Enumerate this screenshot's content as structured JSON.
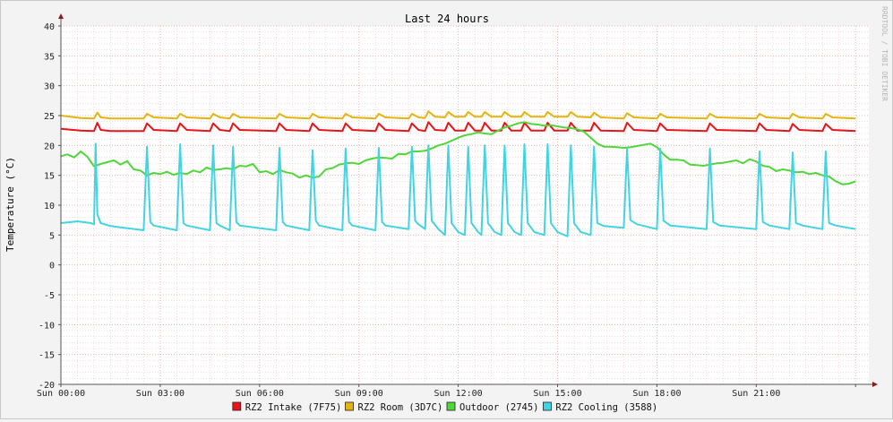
{
  "chart_data": {
    "type": "line",
    "title": "Last 24 hours",
    "ylabel": "Temperature (°C)",
    "watermark": "RRDTOOL / TOBI OETIKER",
    "ylim": [
      -20,
      40
    ],
    "xlim_hours": [
      0,
      24.4
    ],
    "y_ticks": [
      "40",
      "35",
      "30",
      "25",
      "20",
      "15",
      "10",
      "5",
      "0",
      "-5",
      "-10",
      "-15",
      "-20"
    ],
    "x_ticks": [
      "Sun 00:00",
      "Sun 03:00",
      "Sun 06:00",
      "Sun 09:00",
      "Sun 12:00",
      "Sun 15:00",
      "Sun 18:00",
      "Sun 21:00"
    ],
    "legend_placement": "bottom",
    "series": [
      {
        "name": "RZ2 Intake (7F75)",
        "color": "#e8141b",
        "x": [
          0,
          0.6,
          1.0,
          1.1,
          1.2,
          1.5,
          2.5,
          2.6,
          2.8,
          3.5,
          3.6,
          3.8,
          4.5,
          4.6,
          4.8,
          5.1,
          5.2,
          5.4,
          6.5,
          6.6,
          6.8,
          7.5,
          7.6,
          7.8,
          8.5,
          8.6,
          8.8,
          9.5,
          9.6,
          9.8,
          10.5,
          10.6,
          10.8,
          11.0,
          11.1,
          11.3,
          11.6,
          11.7,
          11.9,
          12.2,
          12.3,
          12.5,
          12.7,
          12.8,
          13.0,
          13.3,
          13.4,
          13.6,
          13.9,
          14.0,
          14.2,
          14.6,
          14.7,
          14.9,
          15.3,
          15.4,
          15.6,
          16.0,
          16.1,
          16.3,
          17.0,
          17.1,
          17.3,
          18.0,
          18.1,
          18.3,
          19.5,
          19.6,
          19.8,
          21.0,
          21.1,
          21.3,
          22.0,
          22.1,
          22.3,
          23.0,
          23.1,
          23.3,
          24.0
        ],
        "values": [
          22.8,
          22.5,
          22.4,
          23.8,
          22.6,
          22.4,
          22.4,
          23.7,
          22.6,
          22.4,
          23.7,
          22.6,
          22.4,
          23.7,
          22.6,
          22.4,
          23.7,
          22.6,
          22.4,
          23.7,
          22.6,
          22.4,
          23.7,
          22.6,
          22.4,
          23.7,
          22.6,
          22.4,
          23.7,
          22.6,
          22.4,
          23.7,
          22.6,
          22.4,
          23.9,
          22.6,
          22.5,
          23.8,
          22.5,
          22.5,
          23.8,
          22.5,
          22.5,
          23.8,
          22.5,
          22.5,
          23.8,
          22.5,
          22.5,
          23.8,
          22.5,
          22.5,
          23.8,
          22.5,
          22.5,
          23.8,
          22.5,
          22.5,
          23.8,
          22.5,
          22.4,
          23.8,
          22.6,
          22.4,
          23.7,
          22.6,
          22.4,
          23.7,
          22.6,
          22.4,
          23.7,
          22.6,
          22.4,
          23.6,
          22.6,
          22.4,
          23.6,
          22.6,
          22.4
        ]
      },
      {
        "name": "RZ2 Room (3D7C)",
        "color": "#e5b50f",
        "x": [
          0,
          0.6,
          1.0,
          1.1,
          1.2,
          1.5,
          2.5,
          2.6,
          2.8,
          3.5,
          3.6,
          3.8,
          4.5,
          4.6,
          4.8,
          5.1,
          5.2,
          5.4,
          6.5,
          6.6,
          6.8,
          7.5,
          7.6,
          7.8,
          8.5,
          8.6,
          8.8,
          9.5,
          9.6,
          9.8,
          10.5,
          10.6,
          10.8,
          11.0,
          11.1,
          11.3,
          11.6,
          11.7,
          11.9,
          12.2,
          12.3,
          12.5,
          12.7,
          12.8,
          13.0,
          13.3,
          13.4,
          13.6,
          13.9,
          14.0,
          14.2,
          14.6,
          14.7,
          14.9,
          15.3,
          15.4,
          15.6,
          16.0,
          16.1,
          16.3,
          17.0,
          17.1,
          17.3,
          18.0,
          18.1,
          18.3,
          19.5,
          19.6,
          19.8,
          21.0,
          21.1,
          21.3,
          22.0,
          22.1,
          22.3,
          23.0,
          23.1,
          23.3,
          24.0
        ],
        "values": [
          25.0,
          24.6,
          24.5,
          25.5,
          24.7,
          24.5,
          24.5,
          25.3,
          24.7,
          24.5,
          25.3,
          24.7,
          24.5,
          25.3,
          24.7,
          24.5,
          25.3,
          24.7,
          24.5,
          25.3,
          24.7,
          24.5,
          25.3,
          24.7,
          24.5,
          25.3,
          24.7,
          24.5,
          25.3,
          24.7,
          24.5,
          25.3,
          24.7,
          24.6,
          25.7,
          24.8,
          24.7,
          25.6,
          24.8,
          24.8,
          25.6,
          24.8,
          24.8,
          25.6,
          24.8,
          24.8,
          25.6,
          24.8,
          24.8,
          25.6,
          24.8,
          24.8,
          25.6,
          24.8,
          24.8,
          25.6,
          24.8,
          24.7,
          25.5,
          24.7,
          24.5,
          25.4,
          24.7,
          24.5,
          25.3,
          24.7,
          24.5,
          25.3,
          24.7,
          24.5,
          25.3,
          24.7,
          24.5,
          25.3,
          24.7,
          24.5,
          25.3,
          24.7,
          24.5
        ]
      },
      {
        "name": "Outdoor (2745)",
        "color": "#4fd638",
        "x": [
          0,
          0.2,
          0.4,
          0.6,
          0.8,
          1.0,
          1.2,
          1.4,
          1.6,
          1.8,
          2.0,
          2.2,
          2.4,
          2.6,
          2.8,
          3.0,
          3.2,
          3.4,
          3.6,
          3.8,
          4.0,
          4.2,
          4.4,
          4.6,
          4.8,
          5.0,
          5.2,
          5.4,
          5.6,
          5.8,
          6.0,
          6.2,
          6.4,
          6.6,
          6.8,
          7.0,
          7.2,
          7.4,
          7.6,
          7.8,
          8.0,
          8.2,
          8.4,
          8.6,
          8.8,
          9.0,
          9.2,
          9.4,
          9.6,
          9.8,
          10.0,
          10.2,
          10.4,
          10.6,
          10.8,
          11.0,
          11.2,
          11.4,
          11.6,
          11.8,
          12.0,
          12.2,
          12.4,
          12.6,
          12.8,
          13.0,
          13.2,
          13.4,
          13.6,
          13.8,
          14.0,
          14.2,
          14.4,
          14.6,
          14.8,
          15.0,
          15.2,
          15.4,
          15.6,
          15.8,
          16.0,
          16.2,
          16.4,
          16.6,
          16.8,
          17.0,
          17.2,
          17.4,
          17.6,
          17.8,
          18.0,
          18.2,
          18.4,
          18.6,
          18.8,
          19.0,
          19.2,
          19.4,
          19.6,
          19.8,
          20.0,
          20.2,
          20.4,
          20.6,
          20.8,
          21.0,
          21.2,
          21.4,
          21.6,
          21.8,
          22.0,
          22.2,
          22.4,
          22.6,
          22.8,
          23.0,
          23.2,
          23.4,
          23.6,
          23.8,
          24.0
        ],
        "values": [
          18.2,
          18.5,
          18.0,
          19.0,
          18.1,
          16.5,
          16.9,
          17.2,
          17.5,
          16.8,
          17.4,
          16.0,
          15.8,
          15.0,
          15.4,
          15.2,
          15.6,
          15.1,
          15.4,
          15.2,
          15.8,
          15.5,
          16.3,
          15.9,
          16.0,
          16.2,
          16.0,
          16.6,
          16.5,
          16.9,
          15.5,
          15.7,
          15.2,
          15.9,
          15.5,
          15.3,
          14.6,
          15.0,
          14.6,
          14.8,
          16.0,
          16.2,
          16.8,
          17.0,
          17.1,
          16.9,
          17.5,
          17.8,
          18.0,
          17.9,
          17.8,
          18.6,
          18.5,
          19.0,
          19.0,
          19.1,
          19.5,
          20.0,
          20.3,
          20.8,
          21.3,
          21.7,
          21.9,
          22.2,
          22.0,
          21.9,
          22.5,
          23.0,
          23.3,
          23.7,
          23.9,
          23.6,
          23.5,
          23.3,
          23.4,
          23.2,
          23.0,
          22.9,
          22.7,
          22.3,
          21.3,
          20.3,
          19.8,
          19.8,
          19.7,
          19.6,
          19.7,
          19.9,
          20.1,
          20.3,
          19.7,
          18.5,
          17.6,
          17.6,
          17.5,
          16.8,
          16.7,
          16.6,
          16.8,
          17.0,
          17.1,
          17.3,
          17.5,
          17.0,
          17.7,
          17.3,
          16.6,
          16.4,
          15.7,
          16.0,
          15.8,
          15.5,
          15.6,
          15.2,
          15.4,
          15.0,
          14.8,
          14.0,
          13.5,
          13.6,
          14.0
        ]
      },
      {
        "name": "RZ2 Cooling (3588)",
        "color": "#42d4e2",
        "x": [
          0,
          0.5,
          0.9,
          1.0,
          1.05,
          1.1,
          1.2,
          1.5,
          2.5,
          2.6,
          2.7,
          2.8,
          3.5,
          3.6,
          3.7,
          3.8,
          4.5,
          4.6,
          4.7,
          4.8,
          5.1,
          5.2,
          5.3,
          5.4,
          6.5,
          6.6,
          6.7,
          6.8,
          7.5,
          7.6,
          7.7,
          7.8,
          8.5,
          8.6,
          8.7,
          8.8,
          9.5,
          9.6,
          9.7,
          9.8,
          10.5,
          10.6,
          10.7,
          10.8,
          11.0,
          11.1,
          11.2,
          11.4,
          11.6,
          11.7,
          11.8,
          12.0,
          12.2,
          12.3,
          12.4,
          12.6,
          12.7,
          12.8,
          12.9,
          13.1,
          13.3,
          13.4,
          13.5,
          13.7,
          13.9,
          14.0,
          14.1,
          14.3,
          14.6,
          14.7,
          14.8,
          15.0,
          15.3,
          15.4,
          15.5,
          15.7,
          16.0,
          16.1,
          16.2,
          16.4,
          17.0,
          17.1,
          17.2,
          17.4,
          18.0,
          18.1,
          18.2,
          18.4,
          19.5,
          19.6,
          19.7,
          19.9,
          21.0,
          21.1,
          21.2,
          21.4,
          22.0,
          22.1,
          22.2,
          22.4,
          23.0,
          23.1,
          23.2,
          23.4,
          24.0
        ],
        "values": [
          7.0,
          7.3,
          7.0,
          6.8,
          20.3,
          8.5,
          7.0,
          6.5,
          5.8,
          19.8,
          7.2,
          6.6,
          5.8,
          20.2,
          7.0,
          6.6,
          5.8,
          20.0,
          7.0,
          6.6,
          5.8,
          19.8,
          7.2,
          6.6,
          5.8,
          19.6,
          7.2,
          6.6,
          5.8,
          19.2,
          7.4,
          6.6,
          5.8,
          19.5,
          7.2,
          6.6,
          5.8,
          19.6,
          7.2,
          6.6,
          6.0,
          19.8,
          7.4,
          6.8,
          6.0,
          20.0,
          7.4,
          6.0,
          5.0,
          20.0,
          7.0,
          5.5,
          5.0,
          19.8,
          7.0,
          5.5,
          5.0,
          20.0,
          7.0,
          5.5,
          5.0,
          20.0,
          7.0,
          5.5,
          5.0,
          20.2,
          7.0,
          5.5,
          5.0,
          20.2,
          7.0,
          5.5,
          4.8,
          20.0,
          7.0,
          5.5,
          5.0,
          19.8,
          7.0,
          6.5,
          6.2,
          19.5,
          7.5,
          6.8,
          6.0,
          19.5,
          7.4,
          6.6,
          6.0,
          19.5,
          7.2,
          6.6,
          6.0,
          19.0,
          7.2,
          6.6,
          6.0,
          18.8,
          7.0,
          6.6,
          6.0,
          19.0,
          7.0,
          6.6,
          6.0
        ]
      }
    ]
  }
}
